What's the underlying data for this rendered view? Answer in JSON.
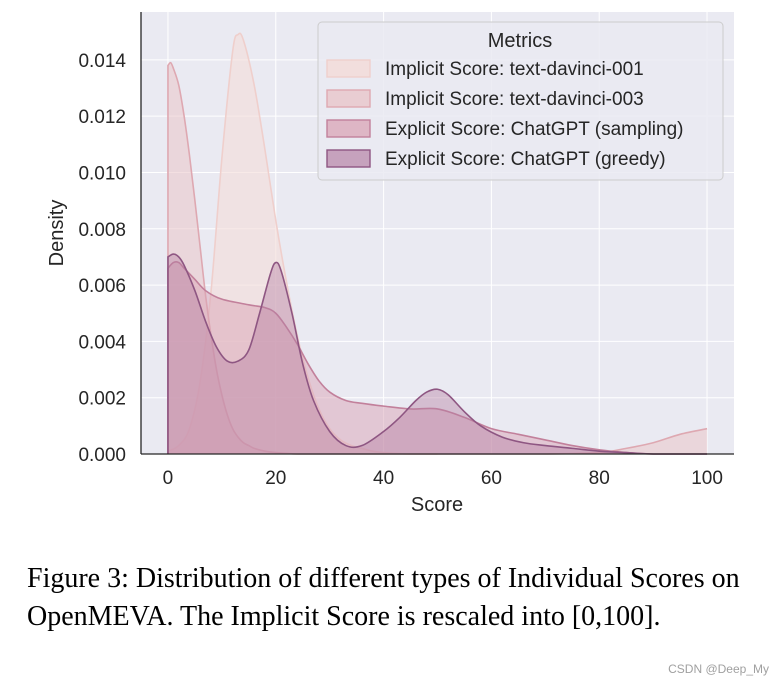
{
  "chart_data": {
    "type": "area",
    "xlabel": "Score",
    "ylabel": "Density",
    "xlim": [
      -5,
      105
    ],
    "ylim": [
      0,
      0.0157
    ],
    "xticks": [
      "0",
      "20",
      "40",
      "60",
      "80",
      "100"
    ],
    "yticks": [
      "0.000",
      "0.002",
      "0.004",
      "0.006",
      "0.008",
      "0.010",
      "0.012",
      "0.014"
    ],
    "grid": true,
    "legend": {
      "title": "Metrics",
      "placement": "top-right"
    },
    "series": [
      {
        "name": "Implicit Score: text-davinci-001",
        "fill": "#f3dcd9",
        "stroke": "#efcfcc",
        "fill_opacity": 0.6,
        "x": [
          0,
          2,
          4,
          6,
          8,
          10,
          12,
          13,
          14,
          16,
          18,
          20,
          22,
          24,
          26,
          28,
          30,
          32,
          34,
          36,
          38,
          40,
          45,
          50
        ],
        "y": [
          0.0001,
          0.0003,
          0.0009,
          0.0026,
          0.0058,
          0.0105,
          0.0143,
          0.0149,
          0.0147,
          0.0131,
          0.0108,
          0.0083,
          0.0061,
          0.0042,
          0.0027,
          0.0016,
          0.0009,
          0.0005,
          0.0003,
          0.0002,
          0.0001,
          5e-05,
          0.0,
          0.0
        ]
      },
      {
        "name": "Implicit Score: text-davinci-003",
        "fill": "#e9c5c9",
        "stroke": "#dea8b1",
        "fill_opacity": 0.55,
        "x": [
          0,
          0.5,
          1,
          2,
          3,
          4,
          5,
          6,
          7,
          8,
          9,
          10,
          11,
          12,
          13,
          14,
          15,
          16,
          18,
          20,
          24,
          28,
          32,
          36,
          40,
          50,
          60,
          70,
          80,
          85,
          90,
          95,
          100
        ],
        "y": [
          0.0138,
          0.0139,
          0.0137,
          0.0131,
          0.012,
          0.0106,
          0.009,
          0.0073,
          0.0056,
          0.0042,
          0.003,
          0.0021,
          0.0014,
          0.0009,
          0.0006,
          0.0004,
          0.0003,
          0.0002,
          0.0001,
          5e-05,
          0.0,
          0.0,
          0.0,
          0.0,
          0.0,
          0.0,
          0.0,
          0.0,
          5e-05,
          0.0002,
          0.0004,
          0.0007,
          0.0009
        ]
      },
      {
        "name": "Explicit Score: ChatGPT (sampling)",
        "fill": "#d9a4b6",
        "stroke": "#c2809b",
        "fill_opacity": 0.5,
        "x": [
          0,
          1,
          2,
          3,
          5,
          7,
          10,
          15,
          18,
          20,
          22,
          24,
          26,
          28,
          30,
          33,
          36,
          40,
          45,
          50,
          55,
          60,
          65,
          70,
          75,
          80,
          85,
          90,
          95,
          100
        ],
        "y": [
          0.0066,
          0.0068,
          0.0068,
          0.0066,
          0.0062,
          0.0058,
          0.0055,
          0.0053,
          0.0052,
          0.005,
          0.0045,
          0.0039,
          0.0032,
          0.0026,
          0.0022,
          0.0019,
          0.0018,
          0.0017,
          0.0016,
          0.0016,
          0.0013,
          0.0009,
          0.0007,
          0.0005,
          0.0003,
          0.00015,
          5e-05,
          0.0,
          0.0,
          0.0
        ]
      },
      {
        "name": "Explicit Score: ChatGPT (greedy)",
        "fill": "#b57fa3",
        "stroke": "#8e5682",
        "fill_opacity": 0.42,
        "x": [
          0,
          1,
          2,
          3,
          5,
          7,
          9,
          11,
          13,
          15,
          17,
          19,
          20,
          21,
          23,
          25,
          27,
          30,
          33,
          36,
          40,
          43,
          46,
          48,
          50,
          52,
          55,
          58,
          62,
          66,
          70,
          75,
          80,
          85,
          90,
          95,
          100
        ],
        "y": [
          0.007,
          0.0071,
          0.007,
          0.0067,
          0.0058,
          0.0047,
          0.0038,
          0.0033,
          0.0033,
          0.0037,
          0.005,
          0.0064,
          0.0068,
          0.0065,
          0.005,
          0.0032,
          0.0019,
          0.0008,
          0.0003,
          0.0003,
          0.0008,
          0.0013,
          0.0019,
          0.0022,
          0.0023,
          0.0021,
          0.0015,
          0.001,
          0.0006,
          0.0004,
          0.0003,
          0.0002,
          0.0001,
          5e-05,
          0.0,
          0.0,
          0.0
        ]
      }
    ]
  },
  "caption": "Figure 3: Distribution of different types of Individual Scores on OpenMEVA. The Implicit Score is rescaled into [0,100].",
  "watermark": "CSDN @Deep_My"
}
